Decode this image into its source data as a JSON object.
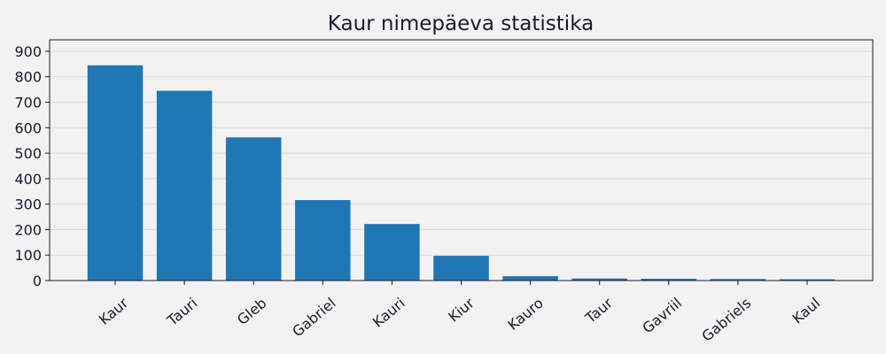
{
  "chart_data": {
    "type": "bar",
    "title": "Kaur nimepäeva statistika",
    "xlabel": "",
    "ylabel": "",
    "categories": [
      "Kaur",
      "Tauri",
      "Gleb",
      "Gabriel",
      "Kauri",
      "Kiur",
      "Kauro",
      "Taur",
      "Gavriil",
      "Gabriels",
      "Kaul"
    ],
    "values": [
      845,
      745,
      562,
      316,
      222,
      97,
      17,
      8,
      7,
      6,
      5
    ],
    "ylim": [
      0,
      945
    ],
    "yticks": [
      0,
      100,
      200,
      300,
      400,
      500,
      600,
      700,
      800,
      900
    ],
    "grid": "horizontal",
    "colors": {
      "bar": "#1f77b4",
      "background": "#f2f2f2",
      "grid": "#d9d9d9",
      "axis": "#1a1a2e"
    }
  }
}
